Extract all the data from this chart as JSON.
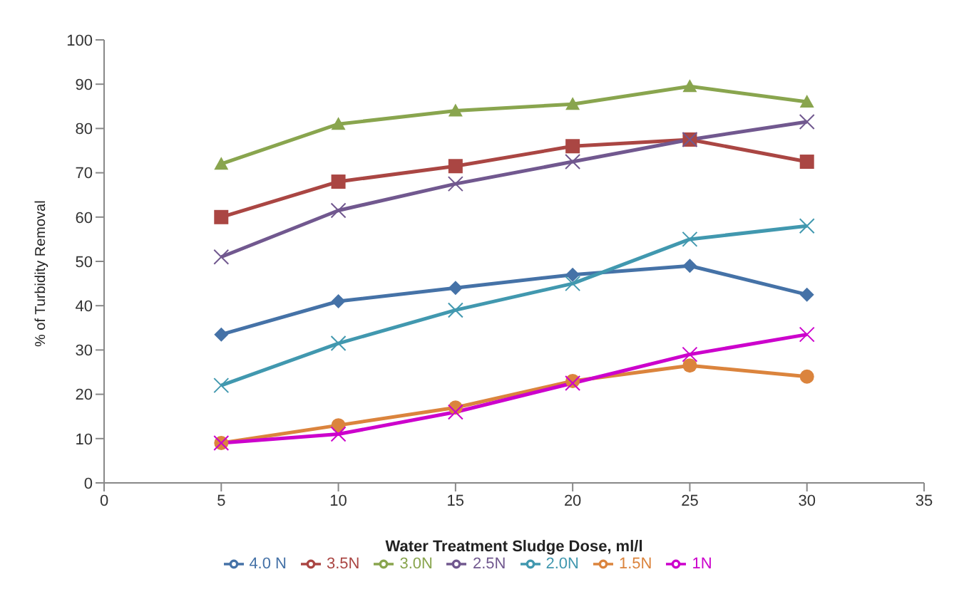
{
  "chart_data": {
    "type": "line",
    "xlabel": "Water Treatment Sludge Dose, ml/l",
    "ylabel": "% of Turbidity Removal",
    "x": [
      5,
      10,
      15,
      20,
      25,
      30
    ],
    "xlim": [
      0,
      35
    ],
    "xticks": [
      0,
      5,
      10,
      15,
      20,
      25,
      30,
      35
    ],
    "ylim": [
      0,
      100
    ],
    "yticks": [
      0,
      10,
      20,
      30,
      40,
      50,
      60,
      70,
      80,
      90,
      100
    ],
    "grid": false,
    "legend": "bottom",
    "series": [
      {
        "name": "4.0 N",
        "color": "#4572a7",
        "marker": "diamond",
        "values": [
          33.5,
          41,
          44,
          47,
          49,
          42.5
        ]
      },
      {
        "name": "3.5N",
        "color": "#aa4643",
        "marker": "square",
        "values": [
          60,
          68,
          71.5,
          76,
          77.5,
          72.5
        ]
      },
      {
        "name": "3.0N",
        "color": "#89a54e",
        "marker": "triangle",
        "values": [
          72,
          81,
          84,
          85.5,
          89.5,
          86
        ]
      },
      {
        "name": "2.5N",
        "color": "#71588f",
        "marker": "cross",
        "values": [
          51,
          61.5,
          67.5,
          72.5,
          77.5,
          81.5
        ]
      },
      {
        "name": "2.0N",
        "color": "#4198af",
        "marker": "cross",
        "values": [
          22,
          31.5,
          39,
          45,
          55,
          58
        ]
      },
      {
        "name": "1.5N",
        "color": "#db843d",
        "marker": "circle",
        "values": [
          9,
          13,
          17,
          23,
          26.5,
          24
        ]
      },
      {
        "name": "1N",
        "color": "#cc00cc",
        "marker": "cross",
        "values": [
          9,
          11,
          16,
          22.5,
          29,
          33.5
        ]
      }
    ]
  }
}
